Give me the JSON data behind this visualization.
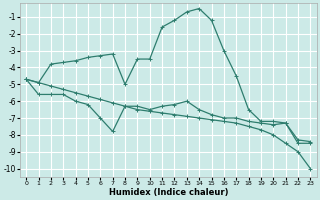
{
  "xlabel": "Humidex (Indice chaleur)",
  "background_color": "#cceae7",
  "grid_color": "#ffffff",
  "line_color": "#2e7d6e",
  "xlim": [
    -0.5,
    23.5
  ],
  "ylim": [
    -10.5,
    -0.2
  ],
  "xticks": [
    0,
    1,
    2,
    3,
    4,
    5,
    6,
    7,
    8,
    9,
    10,
    11,
    12,
    13,
    14,
    15,
    16,
    17,
    18,
    19,
    20,
    21,
    22,
    23
  ],
  "yticks": [
    -10,
    -9,
    -8,
    -7,
    -6,
    -5,
    -4,
    -3,
    -2,
    -1
  ],
  "line1_x": [
    0,
    1,
    2,
    3,
    4,
    5,
    6,
    7,
    8,
    9,
    10,
    11,
    12,
    13,
    14,
    15,
    16,
    17,
    18,
    19,
    20,
    21,
    22,
    23
  ],
  "line1_y": [
    -4.7,
    -4.9,
    -3.8,
    -3.7,
    -3.6,
    -3.4,
    -3.3,
    -3.2,
    -5.0,
    -3.5,
    -3.5,
    -1.6,
    -1.2,
    -0.7,
    -0.5,
    -1.2,
    -3.0,
    -4.5,
    -6.5,
    -7.2,
    -7.2,
    -7.3,
    -8.3,
    -8.4
  ],
  "line2_x": [
    0,
    1,
    2,
    3,
    4,
    5,
    6,
    7,
    8,
    9,
    10,
    11,
    12,
    13,
    14,
    15,
    16,
    17,
    18,
    19,
    20,
    21,
    22,
    23
  ],
  "line2_y": [
    -4.7,
    -5.6,
    -5.6,
    -5.6,
    -6.0,
    -6.2,
    -7.0,
    -7.8,
    -6.3,
    -6.3,
    -6.5,
    -6.3,
    -6.2,
    -6.0,
    -6.5,
    -6.8,
    -7.0,
    -7.0,
    -7.2,
    -7.3,
    -7.4,
    -7.3,
    -8.5,
    -8.5
  ],
  "line3_x": [
    0,
    1,
    2,
    3,
    4,
    5,
    6,
    7,
    8,
    9,
    10,
    11,
    12,
    13,
    14,
    15,
    16,
    17,
    18,
    19,
    20,
    21,
    22,
    23
  ],
  "line3_y": [
    -4.7,
    -4.9,
    -5.1,
    -5.3,
    -5.5,
    -5.7,
    -5.9,
    -6.1,
    -6.3,
    -6.5,
    -6.6,
    -6.7,
    -6.8,
    -6.9,
    -7.0,
    -7.1,
    -7.2,
    -7.3,
    -7.5,
    -7.7,
    -8.0,
    -8.5,
    -9.0,
    -10.0
  ]
}
